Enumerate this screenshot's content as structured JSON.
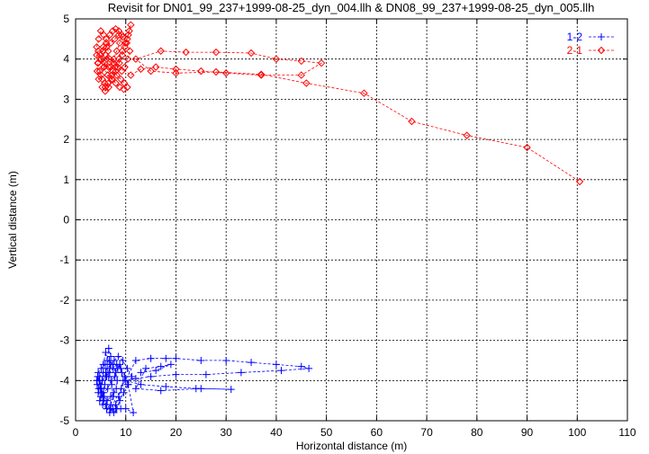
{
  "chart_data": {
    "type": "scatter",
    "title": "Revisit for DN01_99_237+1999-08-25_dyn_004.llh & DN08_99_237+1999-08-25_dyn_005.llh",
    "xlabel": "Horizontal distance (m)",
    "ylabel": "Vertical distance (m)",
    "xlim": [
      0,
      110
    ],
    "ylim": [
      -5,
      5
    ],
    "xticks": [
      0,
      10,
      20,
      30,
      40,
      50,
      60,
      70,
      80,
      90,
      100,
      110
    ],
    "yticks": [
      -5,
      -4,
      -3,
      -2,
      -1,
      0,
      1,
      2,
      3,
      4,
      5
    ],
    "grid": true,
    "legend_position": "top-right",
    "series": [
      {
        "name": "1-2",
        "color": "#0000ff",
        "marker": "plus",
        "line": "dashed",
        "points": [
          [
            5.5,
            -3.6
          ],
          [
            6.0,
            -3.3
          ],
          [
            6.3,
            -3.5
          ],
          [
            6.6,
            -3.2
          ],
          [
            7.0,
            -3.4
          ],
          [
            6.8,
            -3.7
          ],
          [
            6.2,
            -3.9
          ],
          [
            5.8,
            -4.1
          ],
          [
            5.2,
            -4.3
          ],
          [
            4.8,
            -4.5
          ],
          [
            5.4,
            -4.6
          ],
          [
            6.2,
            -4.7
          ],
          [
            7.0,
            -4.6
          ],
          [
            7.5,
            -4.4
          ],
          [
            7.2,
            -4.1
          ],
          [
            6.6,
            -3.9
          ],
          [
            6.0,
            -3.8
          ],
          [
            5.3,
            -4.0
          ],
          [
            4.6,
            -4.2
          ],
          [
            4.2,
            -4.0
          ],
          [
            4.5,
            -3.8
          ],
          [
            5.1,
            -3.7
          ],
          [
            5.9,
            -3.6
          ],
          [
            6.7,
            -3.5
          ],
          [
            7.4,
            -3.6
          ],
          [
            8.0,
            -3.8
          ],
          [
            8.3,
            -4.0
          ],
          [
            8.1,
            -4.2
          ],
          [
            7.6,
            -4.3
          ],
          [
            7.0,
            -4.4
          ],
          [
            6.3,
            -4.5
          ],
          [
            5.7,
            -4.4
          ],
          [
            5.1,
            -4.2
          ],
          [
            4.7,
            -4.0
          ],
          [
            4.4,
            -3.9
          ],
          [
            4.9,
            -4.1
          ],
          [
            5.6,
            -4.3
          ],
          [
            6.4,
            -4.2
          ],
          [
            7.1,
            -4.0
          ],
          [
            7.8,
            -3.9
          ],
          [
            8.4,
            -3.7
          ],
          [
            8.8,
            -3.6
          ],
          [
            9.2,
            -3.8
          ],
          [
            9.5,
            -4.0
          ],
          [
            9.1,
            -4.2
          ],
          [
            8.6,
            -4.4
          ],
          [
            8.0,
            -4.6
          ],
          [
            7.4,
            -4.7
          ],
          [
            6.8,
            -4.8
          ],
          [
            6.2,
            -4.7
          ],
          [
            5.6,
            -4.5
          ],
          [
            5.0,
            -4.4
          ],
          [
            4.5,
            -4.3
          ],
          [
            4.3,
            -4.1
          ],
          [
            4.8,
            -3.9
          ],
          [
            5.5,
            -3.8
          ],
          [
            6.3,
            -3.7
          ],
          [
            7.0,
            -3.6
          ],
          [
            7.7,
            -3.5
          ],
          [
            8.5,
            -3.4
          ],
          [
            9.4,
            -3.5
          ],
          [
            10.3,
            -3.7
          ],
          [
            11.2,
            -3.9
          ],
          [
            10.4,
            -4.1
          ],
          [
            9.6,
            -4.3
          ],
          [
            8.8,
            -4.5
          ],
          [
            8.2,
            -4.7
          ],
          [
            7.6,
            -4.8
          ],
          [
            6.9,
            -4.7
          ],
          [
            6.1,
            -4.6
          ],
          [
            5.4,
            -4.4
          ],
          [
            4.9,
            -4.2
          ],
          [
            5.3,
            -4.0
          ],
          [
            6.0,
            -3.9
          ],
          [
            6.8,
            -3.8
          ],
          [
            7.5,
            -3.7
          ],
          [
            8.2,
            -3.6
          ],
          [
            9.0,
            -3.7
          ],
          [
            9.8,
            -3.9
          ],
          [
            10.5,
            -4.1
          ],
          [
            11.5,
            -4.8
          ],
          [
            10.0,
            -4.7
          ],
          [
            9.0,
            -4.7
          ],
          [
            8.0,
            -4.7
          ],
          [
            7.0,
            -4.7
          ],
          [
            12.0,
            -3.5
          ],
          [
            15.0,
            -3.45
          ],
          [
            18.0,
            -3.45
          ],
          [
            20.0,
            -3.45
          ],
          [
            25.0,
            -3.5
          ],
          [
            30.0,
            -3.5
          ],
          [
            35.0,
            -3.55
          ],
          [
            40.0,
            -3.6
          ],
          [
            45.0,
            -3.65
          ],
          [
            46.5,
            -3.7
          ],
          [
            41.0,
            -3.75
          ],
          [
            33.0,
            -3.8
          ],
          [
            26.0,
            -3.85
          ],
          [
            20.0,
            -3.85
          ],
          [
            15.0,
            -3.9
          ],
          [
            12.0,
            -3.95
          ],
          [
            10.0,
            -4.0
          ],
          [
            13.0,
            -4.1
          ],
          [
            18.0,
            -4.15
          ],
          [
            24.0,
            -4.2
          ],
          [
            31.0,
            -4.22
          ],
          [
            25.0,
            -4.2
          ],
          [
            17.0,
            -4.25
          ],
          [
            12.0,
            -4.2
          ],
          [
            14.0,
            -3.7
          ],
          [
            17.0,
            -3.65
          ],
          [
            19.0,
            -3.6
          ],
          [
            16.0,
            -3.75
          ],
          [
            13.0,
            -3.8
          ]
        ]
      },
      {
        "name": "2-1",
        "color": "#ff0000",
        "marker": "diamond",
        "line": "dashed",
        "points": [
          [
            4.2,
            4.3
          ],
          [
            4.6,
            4.5
          ],
          [
            5.0,
            4.7
          ],
          [
            5.6,
            4.6
          ],
          [
            6.1,
            4.4
          ],
          [
            6.5,
            4.2
          ],
          [
            6.2,
            4.0
          ],
          [
            5.7,
            3.8
          ],
          [
            5.1,
            3.6
          ],
          [
            4.6,
            3.5
          ],
          [
            4.3,
            3.7
          ],
          [
            4.5,
            3.9
          ],
          [
            5.0,
            4.1
          ],
          [
            5.5,
            4.3
          ],
          [
            6.1,
            4.5
          ],
          [
            6.8,
            4.6
          ],
          [
            7.4,
            4.7
          ],
          [
            8.0,
            4.75
          ],
          [
            8.6,
            4.7
          ],
          [
            9.2,
            4.6
          ],
          [
            8.8,
            4.4
          ],
          [
            8.2,
            4.2
          ],
          [
            7.6,
            4.0
          ],
          [
            7.0,
            3.8
          ],
          [
            6.4,
            3.6
          ],
          [
            5.8,
            3.4
          ],
          [
            5.3,
            3.3
          ],
          [
            5.9,
            3.2
          ],
          [
            6.6,
            3.3
          ],
          [
            7.3,
            3.5
          ],
          [
            8.0,
            3.7
          ],
          [
            8.7,
            3.9
          ],
          [
            9.3,
            4.1
          ],
          [
            9.8,
            4.3
          ],
          [
            10.3,
            4.5
          ],
          [
            10.7,
            4.7
          ],
          [
            11.0,
            4.85
          ],
          [
            10.5,
            4.6
          ],
          [
            9.9,
            4.4
          ],
          [
            9.3,
            4.2
          ],
          [
            8.6,
            4.0
          ],
          [
            7.9,
            3.8
          ],
          [
            7.2,
            3.6
          ],
          [
            6.5,
            3.4
          ],
          [
            5.9,
            3.3
          ],
          [
            5.3,
            3.5
          ],
          [
            4.8,
            3.7
          ],
          [
            4.4,
            3.9
          ],
          [
            4.2,
            4.1
          ],
          [
            4.5,
            4.2
          ],
          [
            5.1,
            4.0
          ],
          [
            5.8,
            3.9
          ],
          [
            6.6,
            3.8
          ],
          [
            7.4,
            3.7
          ],
          [
            8.2,
            3.6
          ],
          [
            9.0,
            3.5
          ],
          [
            9.7,
            3.4
          ],
          [
            10.3,
            3.3
          ],
          [
            9.6,
            3.25
          ],
          [
            8.8,
            3.3
          ],
          [
            8.0,
            3.4
          ],
          [
            7.2,
            3.5
          ],
          [
            6.4,
            3.6
          ],
          [
            5.6,
            3.8
          ],
          [
            5.0,
            4.0
          ],
          [
            5.4,
            4.2
          ],
          [
            6.2,
            4.3
          ],
          [
            7.0,
            4.4
          ],
          [
            7.8,
            4.5
          ],
          [
            8.6,
            4.6
          ],
          [
            9.4,
            4.55
          ],
          [
            10.2,
            4.4
          ],
          [
            10.8,
            4.2
          ],
          [
            10.4,
            4.0
          ],
          [
            9.8,
            3.8
          ],
          [
            9.2,
            3.7
          ],
          [
            8.4,
            3.8
          ],
          [
            7.6,
            3.9
          ],
          [
            6.8,
            4.0
          ],
          [
            6.0,
            4.1
          ],
          [
            11.0,
            3.6
          ],
          [
            13.0,
            3.75
          ],
          [
            16.0,
            3.8
          ],
          [
            20.0,
            3.75
          ],
          [
            25.0,
            3.7
          ],
          [
            30.0,
            3.65
          ],
          [
            37.0,
            3.6
          ],
          [
            45.0,
            3.6
          ],
          [
            49.0,
            3.9
          ],
          [
            45.0,
            3.95
          ],
          [
            40.0,
            4.0
          ],
          [
            35.0,
            4.15
          ],
          [
            28.0,
            4.17
          ],
          [
            22.0,
            4.17
          ],
          [
            17.0,
            4.2
          ],
          [
            12.0,
            4.0
          ],
          [
            15.0,
            3.7
          ],
          [
            20.0,
            3.65
          ],
          [
            28.0,
            3.68
          ],
          [
            37.0,
            3.62
          ],
          [
            46.0,
            3.4
          ],
          [
            57.5,
            3.15
          ],
          [
            67.0,
            2.45
          ],
          [
            78.0,
            2.1
          ],
          [
            90.0,
            1.8
          ],
          [
            100.5,
            0.95
          ]
        ]
      }
    ]
  }
}
